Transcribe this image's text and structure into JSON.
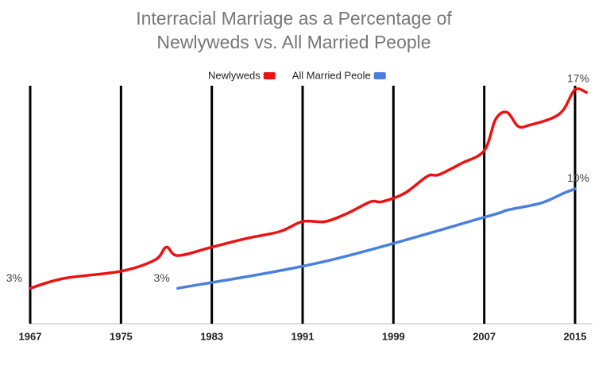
{
  "chart_data": {
    "type": "line",
    "title": "Interracial Marriage as a Percentage of Newlyweds vs. All Married People",
    "xlim": [
      1967,
      2016.5
    ],
    "xticks": [
      1967,
      1975,
      1983,
      1991,
      1999,
      2007,
      2015
    ],
    "ylim": [
      0.5,
      18
    ],
    "grid": true,
    "legend": "top",
    "series": [
      {
        "name": "Newlyweds",
        "color": "#ee1111",
        "x": [
          1967,
          1970,
          1975,
          1978,
          1979,
          1980,
          1983,
          1986,
          1989,
          1991,
          1993,
          1995,
          1997,
          1998,
          2000,
          2002,
          2003,
          2005,
          2007,
          2008,
          2009,
          2010,
          2011,
          2013,
          2014,
          2015,
          2016
        ],
        "values": [
          3,
          3.7,
          4.2,
          5,
          5.9,
          5.3,
          5.9,
          6.5,
          7.0,
          7.7,
          7.7,
          8.3,
          9.1,
          9.1,
          9.7,
          10.9,
          11.0,
          11.8,
          12.7,
          14.9,
          15.4,
          14.4,
          14.5,
          15.0,
          15.6,
          17,
          16.8
        ],
        "value_labels": [
          "3%",
          null,
          null,
          null,
          null,
          null,
          null,
          null,
          null,
          null,
          null,
          null,
          null,
          null,
          null,
          null,
          null,
          null,
          null,
          null,
          null,
          null,
          null,
          null,
          null,
          "17%",
          null
        ]
      },
      {
        "name": "All Married Peole",
        "color": "#4a7fe0",
        "x": [
          1980,
          1993,
          2007,
          2009,
          2012,
          2014,
          2015
        ],
        "values": [
          3,
          4.9,
          8.0,
          8.5,
          9.0,
          9.7,
          10
        ],
        "value_labels": [
          "3%",
          null,
          null,
          null,
          null,
          null,
          "10%"
        ]
      }
    ]
  }
}
